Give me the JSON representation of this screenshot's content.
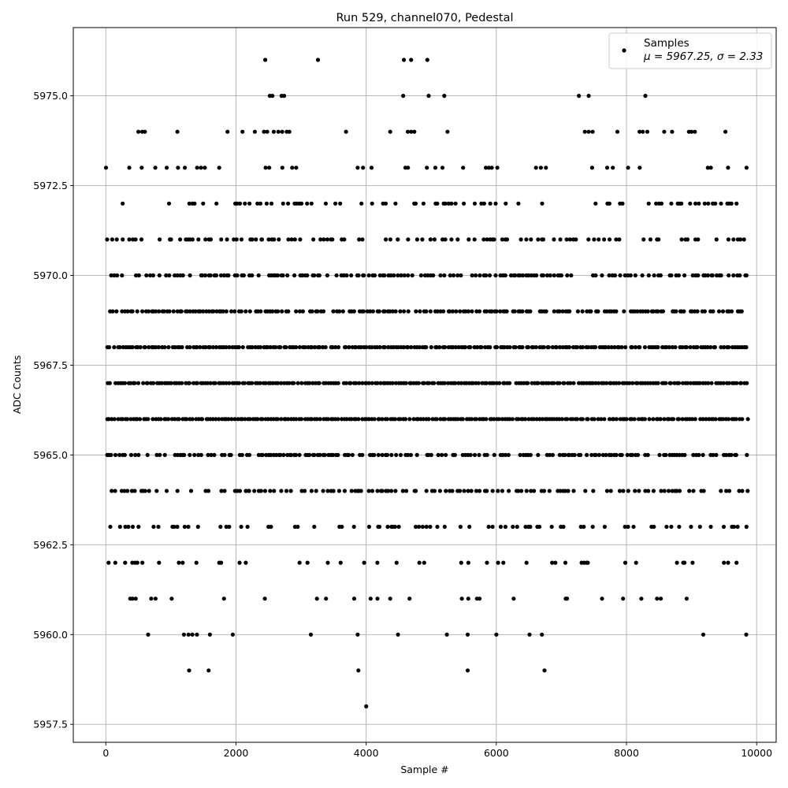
{
  "chart_data": {
    "type": "scatter",
    "title": "Run 529, channel070, Pedestal",
    "xlabel": "Sample #",
    "ylabel": "ADC Counts",
    "xlim": [
      -500,
      10300
    ],
    "ylim": [
      5957.0,
      5976.9
    ],
    "xticks": [
      0,
      2000,
      4000,
      6000,
      8000,
      10000
    ],
    "xtick_labels": [
      "0",
      "2000",
      "4000",
      "6000",
      "8000",
      "10000"
    ],
    "yticks": [
      5957.5,
      5960.0,
      5962.5,
      5965.0,
      5967.5,
      5970.0,
      5972.5,
      5975.0
    ],
    "ytick_labels": [
      "5957.5",
      "5960.0",
      "5962.5",
      "5965.0",
      "5967.5",
      "5970.0",
      "5972.5",
      "5975.0"
    ],
    "grid": true,
    "legend_position": "top-right",
    "series": [
      {
        "name": "Samples",
        "stat_label": "μ = 5967.25, σ = 2.33",
        "color": "#000000",
        "x_range": [
          0,
          9850
        ],
        "n_samples": 9851,
        "levels": [
          5958,
          5959,
          5960,
          5961,
          5962,
          5963,
          5964,
          5965,
          5966,
          5967,
          5968,
          5969,
          5970,
          5971,
          5972,
          5973,
          5974,
          5975,
          5976
        ],
        "sparse_points": [
          {
            "x": 4000,
            "y": 5958
          },
          {
            "x": 1280,
            "y": 5959
          },
          {
            "x": 1580,
            "y": 5959
          },
          {
            "x": 3880,
            "y": 5959
          },
          {
            "x": 5560,
            "y": 5959
          },
          {
            "x": 6740,
            "y": 5959
          },
          {
            "x": 650,
            "y": 5960
          },
          {
            "x": 1200,
            "y": 5960
          },
          {
            "x": 1270,
            "y": 5960
          },
          {
            "x": 1330,
            "y": 5960
          },
          {
            "x": 1400,
            "y": 5960
          },
          {
            "x": 1600,
            "y": 5960
          },
          {
            "x": 1950,
            "y": 5960
          },
          {
            "x": 3150,
            "y": 5960
          },
          {
            "x": 3870,
            "y": 5960
          },
          {
            "x": 4490,
            "y": 5960
          },
          {
            "x": 5240,
            "y": 5960
          },
          {
            "x": 5560,
            "y": 5960
          },
          {
            "x": 6000,
            "y": 5960
          },
          {
            "x": 6510,
            "y": 5960
          },
          {
            "x": 6700,
            "y": 5960
          },
          {
            "x": 9180,
            "y": 5960
          },
          {
            "x": 9840,
            "y": 5960
          },
          {
            "x": 2450,
            "y": 5976
          },
          {
            "x": 3260,
            "y": 5976
          },
          {
            "x": 4580,
            "y": 5976
          },
          {
            "x": 4690,
            "y": 5976
          },
          {
            "x": 4940,
            "y": 5976
          },
          {
            "x": 2520,
            "y": 5975
          },
          {
            "x": 2560,
            "y": 5975
          },
          {
            "x": 2700,
            "y": 5975
          },
          {
            "x": 2740,
            "y": 5975
          },
          {
            "x": 4570,
            "y": 5975
          },
          {
            "x": 4960,
            "y": 5975
          },
          {
            "x": 5200,
            "y": 5975
          },
          {
            "x": 7270,
            "y": 5975
          },
          {
            "x": 7420,
            "y": 5975
          },
          {
            "x": 8290,
            "y": 5975
          },
          {
            "x": 500,
            "y": 5974
          },
          {
            "x": 560,
            "y": 5974
          },
          {
            "x": 600,
            "y": 5974
          },
          {
            "x": 1100,
            "y": 5974
          },
          {
            "x": 1870,
            "y": 5974
          },
          {
            "x": 2100,
            "y": 5974
          },
          {
            "x": 2290,
            "y": 5974
          },
          {
            "x": 2430,
            "y": 5974
          },
          {
            "x": 2480,
            "y": 5974
          },
          {
            "x": 2580,
            "y": 5974
          },
          {
            "x": 2650,
            "y": 5974
          },
          {
            "x": 2710,
            "y": 5974
          },
          {
            "x": 2780,
            "y": 5974
          },
          {
            "x": 2820,
            "y": 5974
          },
          {
            "x": 3690,
            "y": 5974
          },
          {
            "x": 4370,
            "y": 5974
          },
          {
            "x": 4640,
            "y": 5974
          },
          {
            "x": 4690,
            "y": 5974
          },
          {
            "x": 4740,
            "y": 5974
          },
          {
            "x": 5250,
            "y": 5974
          },
          {
            "x": 7360,
            "y": 5974
          },
          {
            "x": 7420,
            "y": 5974
          },
          {
            "x": 7480,
            "y": 5974
          },
          {
            "x": 7860,
            "y": 5974
          },
          {
            "x": 8200,
            "y": 5974
          },
          {
            "x": 8250,
            "y": 5974
          },
          {
            "x": 8320,
            "y": 5974
          },
          {
            "x": 8580,
            "y": 5974
          },
          {
            "x": 8700,
            "y": 5974
          },
          {
            "x": 8960,
            "y": 5974
          },
          {
            "x": 9000,
            "y": 5974
          },
          {
            "x": 9050,
            "y": 5974
          },
          {
            "x": 9520,
            "y": 5974
          }
        ],
        "level_density": {
          "5961": 0.12,
          "5962": 0.22,
          "5963": 0.35,
          "5964": 0.5,
          "5965": 0.7,
          "5966": 0.95,
          "5967": 0.98,
          "5968": 0.95,
          "5969": 0.75,
          "5970": 0.6,
          "5971": 0.42,
          "5972": 0.3,
          "5973": 0.15
        }
      }
    ]
  }
}
